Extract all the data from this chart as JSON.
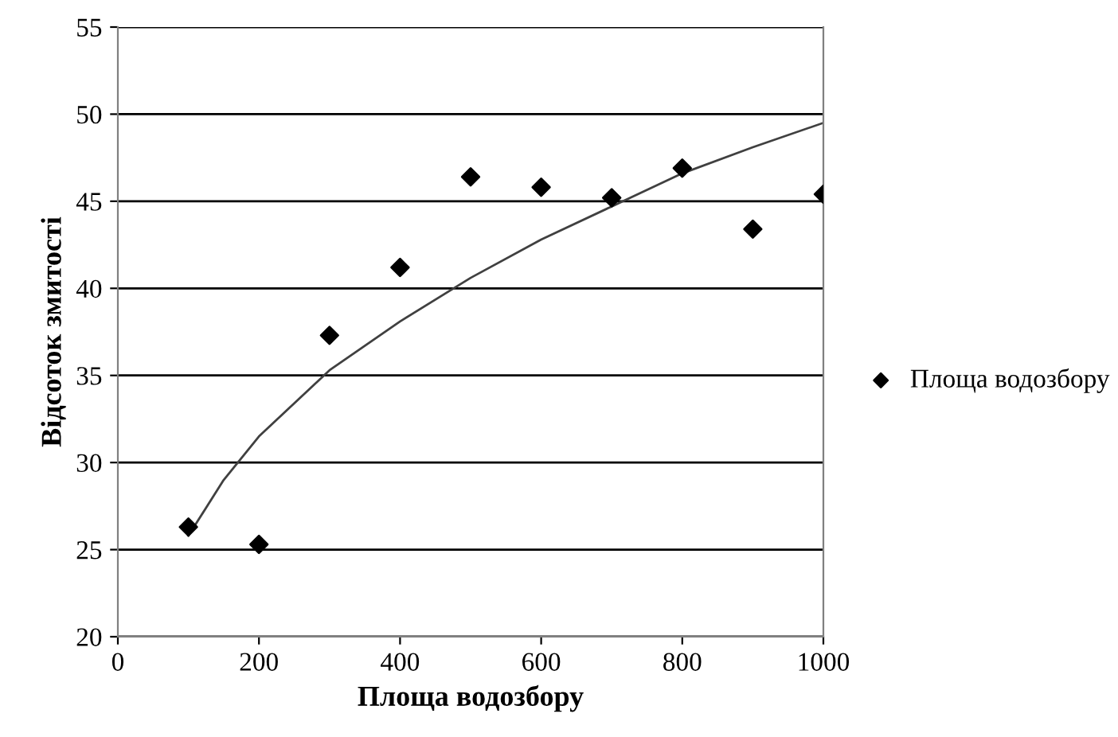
{
  "chart_data": {
    "type": "scatter",
    "xlabel": "Площа водозбору",
    "ylabel": "Відсоток змитості",
    "xlim": [
      0,
      1000
    ],
    "xticks": [
      0,
      200,
      400,
      600,
      800,
      1000
    ],
    "ylim": [
      20,
      55
    ],
    "yticks": [
      20,
      25,
      30,
      35,
      40,
      45,
      50,
      55
    ],
    "grid": "y",
    "legend": "right",
    "x": [
      100,
      200,
      300,
      400,
      500,
      600,
      700,
      800,
      900,
      1000
    ],
    "series": [
      {
        "name": "Площа водозбору",
        "color": "#000000",
        "marker": "diamond",
        "values": [
          26.3,
          25.3,
          37.3,
          41.2,
          46.4,
          45.8,
          45.2,
          46.9,
          43.4,
          45.4
        ]
      },
      {
        "type": "line",
        "marker": "none",
        "color": "#404040",
        "x": [
          100,
          150,
          200,
          300,
          400,
          500,
          600,
          700,
          800,
          900,
          1000
        ],
        "values": [
          25.8,
          29.0,
          31.5,
          35.3,
          38.1,
          40.6,
          42.8,
          44.7,
          46.6,
          48.1,
          49.5
        ]
      }
    ]
  }
}
